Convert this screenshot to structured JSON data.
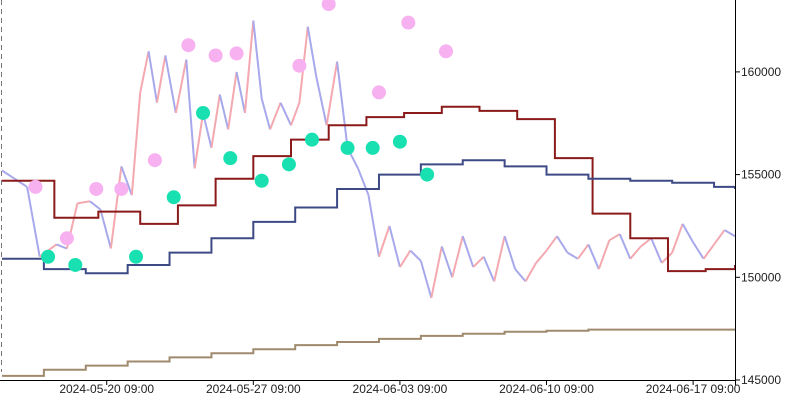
{
  "chart_data": {
    "type": "line",
    "title": "",
    "xlabel": "",
    "ylabel": "",
    "x_ticks": [
      "2024-05-20 09:00",
      "2024-05-27 09:00",
      "2024-06-03 09:00",
      "2024-06-10 09:00",
      "2024-06-17 09:00"
    ],
    "y_ticks": [
      145000,
      150000,
      155000,
      160000
    ],
    "y_tick_labels": [
      "145000",
      "150000",
      "155000",
      "160000"
    ],
    "ylim": [
      145000,
      163500
    ],
    "xlim_days_span": [
      0,
      35
    ],
    "grid": false,
    "colors": {
      "price_up": "#f4a8b0",
      "price_down": "#a8a8ec",
      "step_fast": "#8b1a1a",
      "step_mid": "#3d4a86",
      "step_slow": "#a08a6e",
      "marker_high": "#f7b0f0",
      "marker_low": "#19e0b0",
      "axis": "#000000"
    },
    "series": [
      {
        "key": "price",
        "x": [
          0,
          0.6,
          1.2,
          1.8,
          2.2,
          2.6,
          3.1,
          3.6,
          4.2,
          4.7,
          5.2,
          5.7,
          6.2,
          6.6,
          7.0,
          7.4,
          7.8,
          8.3,
          8.8,
          9.2,
          9.6,
          10.0,
          10.4,
          10.8,
          11.2,
          11.6,
          12.0,
          12.4,
          12.8,
          13.3,
          13.8,
          14.2,
          14.6,
          15.0,
          15.5,
          16.0,
          16.5,
          17.0,
          17.5,
          18.0,
          18.5,
          19.0,
          19.5,
          20.0,
          20.5,
          21.0,
          21.5,
          22.0,
          22.5,
          23.0,
          23.5,
          24.0,
          24.5,
          25.0,
          25.5,
          26.0,
          26.5,
          27.0,
          27.5,
          28.0,
          28.5,
          29.0,
          29.5,
          30.0,
          30.5,
          31.0,
          31.5,
          32.0,
          32.5,
          33.0,
          33.5,
          34.0,
          34.5,
          35.0
        ],
        "values": [
          155200,
          154800,
          154400,
          151000,
          151300,
          151600,
          151400,
          153600,
          153700,
          153300,
          151400,
          155400,
          154000,
          159000,
          161000,
          158500,
          160800,
          158000,
          160600,
          155300,
          158000,
          156300,
          158900,
          157200,
          160000,
          158000,
          162500,
          158700,
          157200,
          158500,
          157400,
          158500,
          162200,
          159800,
          157400,
          160500,
          156300,
          155300,
          154000,
          151000,
          152500,
          150500,
          151300,
          150800,
          149000,
          151500,
          150000,
          152000,
          150500,
          151000,
          149800,
          152000,
          150400,
          149800,
          150700,
          151300,
          152000,
          151200,
          150900,
          151600,
          150400,
          151800,
          152100,
          150900,
          151500,
          151900,
          150700,
          151200,
          152600,
          151700,
          150900,
          151600,
          152300,
          152000
        ]
      },
      {
        "key": "step_fast",
        "x": [
          0,
          2.5,
          4.6,
          6.6,
          8.4,
          10.2,
          12.0,
          13.8,
          15.6,
          17.4,
          19.2,
          21.0,
          22.8,
          24.6,
          26.4,
          28.2,
          30.0,
          31.8,
          33.6,
          35.0
        ],
        "values": [
          154700,
          152900,
          153200,
          152600,
          153500,
          154800,
          155900,
          156700,
          157400,
          157800,
          158000,
          158300,
          158100,
          157700,
          155800,
          153100,
          151900,
          150300,
          150400,
          150600
        ]
      },
      {
        "key": "step_mid",
        "x": [
          0,
          2.0,
          4.0,
          6.0,
          8.0,
          10.0,
          12.0,
          14.0,
          16.0,
          18.0,
          20.0,
          22.0,
          24.0,
          26.0,
          28.0,
          30.0,
          32.0,
          34.0,
          35.0
        ],
        "values": [
          150900,
          150400,
          150200,
          150600,
          151200,
          151900,
          152700,
          153400,
          154300,
          155000,
          155500,
          155700,
          155400,
          155000,
          154800,
          154700,
          154600,
          154400,
          154300
        ]
      },
      {
        "key": "step_slow",
        "x": [
          0,
          2.0,
          4.0,
          6.0,
          8.0,
          10.0,
          12.0,
          14.0,
          16.0,
          18.0,
          20.0,
          22.0,
          24.0,
          26.0,
          28.0,
          30.0,
          32.0,
          34.0,
          35.0
        ],
        "values": [
          145200,
          145500,
          145700,
          145900,
          146100,
          146300,
          146500,
          146700,
          146850,
          147000,
          147150,
          147250,
          147350,
          147400,
          147450,
          147450,
          147450,
          147450,
          147450
        ]
      }
    ],
    "markers_high": [
      {
        "x": 1.6,
        "y": 154400
      },
      {
        "x": 3.1,
        "y": 151900
      },
      {
        "x": 4.5,
        "y": 154300
      },
      {
        "x": 5.7,
        "y": 154300
      },
      {
        "x": 7.3,
        "y": 155700
      },
      {
        "x": 8.9,
        "y": 161300
      },
      {
        "x": 10.2,
        "y": 160800
      },
      {
        "x": 11.2,
        "y": 160900
      },
      {
        "x": 14.2,
        "y": 160300
      },
      {
        "x": 15.6,
        "y": 163300
      },
      {
        "x": 18.0,
        "y": 159000
      },
      {
        "x": 19.4,
        "y": 162400
      },
      {
        "x": 21.2,
        "y": 161000
      }
    ],
    "markers_low": [
      {
        "x": 2.2,
        "y": 151000
      },
      {
        "x": 3.5,
        "y": 150600
      },
      {
        "x": 6.4,
        "y": 151000
      },
      {
        "x": 8.2,
        "y": 153900
      },
      {
        "x": 9.6,
        "y": 158000
      },
      {
        "x": 10.9,
        "y": 155800
      },
      {
        "x": 12.4,
        "y": 154700
      },
      {
        "x": 13.7,
        "y": 155500
      },
      {
        "x": 14.8,
        "y": 156700
      },
      {
        "x": 16.5,
        "y": 156300
      },
      {
        "x": 17.7,
        "y": 156300
      },
      {
        "x": 19.0,
        "y": 156600
      },
      {
        "x": 20.3,
        "y": 155000
      }
    ],
    "x_tick_positions": [
      5,
      12,
      19,
      26,
      33
    ]
  }
}
